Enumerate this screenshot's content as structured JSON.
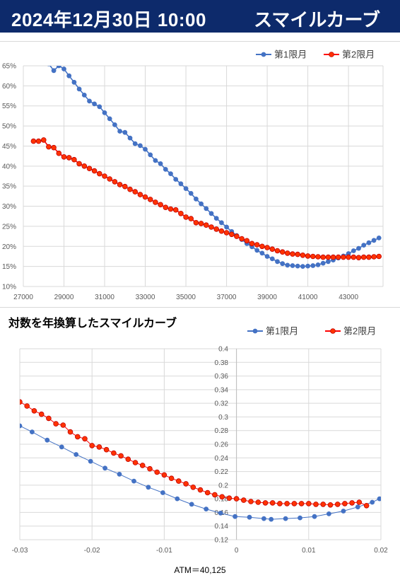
{
  "header": {
    "date": "2024年12月30日 10:00",
    "name": "スマイルカーブ"
  },
  "colors": {
    "header_bg": "#0d2a6b",
    "series1": "#4472c4",
    "series2": "#ff0000",
    "series2_fill": "#ff3300",
    "series2_edge": "#c00000",
    "grid": "#d9d9d9"
  },
  "chart_data": [
    {
      "type": "line",
      "title": "",
      "xlabel": "",
      "ylabel": "",
      "xlim": [
        27000,
        44700
      ],
      "ylim": [
        0.1,
        0.65
      ],
      "x_ticks": [
        27000,
        29000,
        31000,
        33000,
        35000,
        37000,
        39000,
        41000,
        43000
      ],
      "x_tick_labels": [
        "27000",
        "29000",
        "31000",
        "33000",
        "35000",
        "37000",
        "39000",
        "41000",
        "43000"
      ],
      "y_ticks": [
        0.1,
        0.15,
        0.2,
        0.25,
        0.3,
        0.35,
        0.4,
        0.45,
        0.5,
        0.55,
        0.6,
        0.65
      ],
      "y_tick_labels": [
        "10%",
        "15%",
        "20%",
        "25%",
        "30%",
        "35%",
        "40%",
        "45%",
        "50%",
        "55%",
        "60%",
        "65%"
      ],
      "grid": true,
      "legend": "top-right",
      "series": [
        {
          "name": "第1限月",
          "x": [
            28250,
            28500,
            28750,
            29000,
            29250,
            29500,
            29750,
            30000,
            30250,
            30500,
            30750,
            31000,
            31250,
            31500,
            31750,
            32000,
            32250,
            32500,
            32750,
            33000,
            33250,
            33500,
            33750,
            34000,
            34250,
            34500,
            34750,
            35000,
            35250,
            35500,
            35750,
            36000,
            36250,
            36500,
            36750,
            37000,
            37250,
            37500,
            37750,
            38000,
            38250,
            38500,
            38750,
            39000,
            39250,
            39500,
            39750,
            40000,
            40250,
            40500,
            40750,
            41000,
            41250,
            41500,
            41750,
            42000,
            42250,
            42500,
            42750,
            43000,
            43250,
            43500,
            43750,
            44000,
            44250,
            44500
          ],
          "y": [
            0.655,
            0.638,
            0.65,
            0.642,
            0.625,
            0.609,
            0.592,
            0.577,
            0.562,
            0.555,
            0.548,
            0.533,
            0.518,
            0.503,
            0.487,
            0.484,
            0.47,
            0.456,
            0.451,
            0.442,
            0.428,
            0.414,
            0.406,
            0.392,
            0.381,
            0.367,
            0.356,
            0.344,
            0.332,
            0.318,
            0.306,
            0.294,
            0.282,
            0.27,
            0.259,
            0.248,
            0.237,
            0.227,
            0.217,
            0.207,
            0.199,
            0.19,
            0.183,
            0.175,
            0.169,
            0.162,
            0.157,
            0.153,
            0.152,
            0.151,
            0.15,
            0.151,
            0.152,
            0.154,
            0.158,
            0.162,
            0.166,
            0.171,
            0.176,
            0.182,
            0.189,
            0.195,
            0.203,
            0.209,
            0.215,
            0.221
          ]
        },
        {
          "name": "第2限月",
          "x": [
            27500,
            27750,
            28000,
            28250,
            28500,
            28750,
            29000,
            29250,
            29500,
            29750,
            30000,
            30250,
            30500,
            30750,
            31000,
            31250,
            31500,
            31750,
            32000,
            32250,
            32500,
            32750,
            33000,
            33250,
            33500,
            33750,
            34000,
            34250,
            34500,
            34750,
            35000,
            35250,
            35500,
            35750,
            36000,
            36250,
            36500,
            36750,
            37000,
            37250,
            37500,
            37750,
            38000,
            38250,
            38500,
            38750,
            39000,
            39250,
            39500,
            39750,
            40000,
            40250,
            40500,
            40750,
            41000,
            41250,
            41500,
            41750,
            42000,
            42250,
            42500,
            42750,
            43000,
            43250,
            43500,
            43750,
            44000,
            44250,
            44500
          ],
          "y": [
            0.462,
            0.462,
            0.465,
            0.448,
            0.446,
            0.432,
            0.423,
            0.421,
            0.416,
            0.406,
            0.4,
            0.394,
            0.388,
            0.381,
            0.375,
            0.368,
            0.361,
            0.354,
            0.349,
            0.342,
            0.336,
            0.329,
            0.323,
            0.317,
            0.31,
            0.304,
            0.297,
            0.293,
            0.291,
            0.282,
            0.273,
            0.269,
            0.259,
            0.257,
            0.253,
            0.248,
            0.243,
            0.238,
            0.234,
            0.23,
            0.225,
            0.219,
            0.214,
            0.207,
            0.204,
            0.2,
            0.197,
            0.193,
            0.189,
            0.186,
            0.183,
            0.181,
            0.18,
            0.178,
            0.176,
            0.175,
            0.174,
            0.173,
            0.173,
            0.173,
            0.173,
            0.173,
            0.173,
            0.173,
            0.172,
            0.173,
            0.173,
            0.174,
            0.175
          ]
        }
      ]
    },
    {
      "type": "scatter",
      "title": "対数を年換算したスマイルカーブ",
      "xlabel": "ATM＝40,125",
      "ylabel": "",
      "xlim": [
        -0.03,
        0.02
      ],
      "ylim": [
        0.12,
        0.4
      ],
      "x_ticks": [
        -0.03,
        -0.02,
        -0.01,
        0,
        0.01,
        0.02
      ],
      "x_tick_labels": [
        "-0.03",
        "-0.02",
        "-0.01",
        "0",
        "0.01",
        "0.02"
      ],
      "y_ticks": [
        0.12,
        0.14,
        0.16,
        0.18,
        0.2,
        0.22,
        0.24,
        0.26,
        0.28,
        0.3,
        0.32,
        0.34,
        0.36,
        0.38,
        0.4
      ],
      "y_tick_labels": [
        "0.12",
        "0.14",
        "0.16",
        "0.18",
        "0.2",
        "0.22",
        "0.24",
        "0.26",
        "0.28",
        "0.3",
        "0.32",
        "0.34",
        "0.36",
        "0.38",
        "0.4"
      ],
      "grid": true,
      "legend": "top-right",
      "series": [
        {
          "name": "第1限月",
          "x": [
            -0.03,
            -0.0283,
            -0.0262,
            -0.0242,
            -0.0222,
            -0.0202,
            -0.0182,
            -0.0162,
            -0.0142,
            -0.0122,
            -0.0102,
            -0.0082,
            -0.0062,
            -0.0042,
            -0.0022,
            -0.0002,
            0.0018,
            0.0038,
            0.0048,
            0.0068,
            0.0088,
            0.0108,
            0.0128,
            0.0148,
            0.0168,
            0.0188,
            0.0198
          ],
          "y": [
            0.287,
            0.278,
            0.266,
            0.256,
            0.245,
            0.235,
            0.225,
            0.216,
            0.206,
            0.197,
            0.189,
            0.18,
            0.172,
            0.165,
            0.159,
            0.154,
            0.153,
            0.151,
            0.15,
            0.151,
            0.152,
            0.154,
            0.158,
            0.162,
            0.168,
            0.175,
            0.18
          ]
        },
        {
          "name": "第2限月",
          "x": [
            -0.03,
            -0.029,
            -0.028,
            -0.027,
            -0.026,
            -0.025,
            -0.024,
            -0.023,
            -0.022,
            -0.021,
            -0.02,
            -0.019,
            -0.018,
            -0.017,
            -0.016,
            -0.015,
            -0.014,
            -0.013,
            -0.012,
            -0.011,
            -0.01,
            -0.009,
            -0.008,
            -0.007,
            -0.006,
            -0.005,
            -0.004,
            -0.003,
            -0.002,
            -0.001,
            0.0,
            0.001,
            0.002,
            0.003,
            0.004,
            0.005,
            0.006,
            0.007,
            0.008,
            0.009,
            0.01,
            0.011,
            0.012,
            0.013,
            0.014,
            0.015,
            0.016,
            0.017,
            0.018
          ],
          "y": [
            0.322,
            0.316,
            0.309,
            0.304,
            0.298,
            0.29,
            0.288,
            0.278,
            0.271,
            0.268,
            0.258,
            0.256,
            0.252,
            0.247,
            0.243,
            0.238,
            0.233,
            0.229,
            0.224,
            0.219,
            0.215,
            0.21,
            0.206,
            0.202,
            0.197,
            0.193,
            0.189,
            0.186,
            0.183,
            0.181,
            0.18,
            0.178,
            0.176,
            0.175,
            0.174,
            0.174,
            0.173,
            0.173,
            0.173,
            0.173,
            0.173,
            0.172,
            0.172,
            0.171,
            0.172,
            0.173,
            0.174,
            0.175,
            0.17
          ]
        }
      ]
    }
  ]
}
